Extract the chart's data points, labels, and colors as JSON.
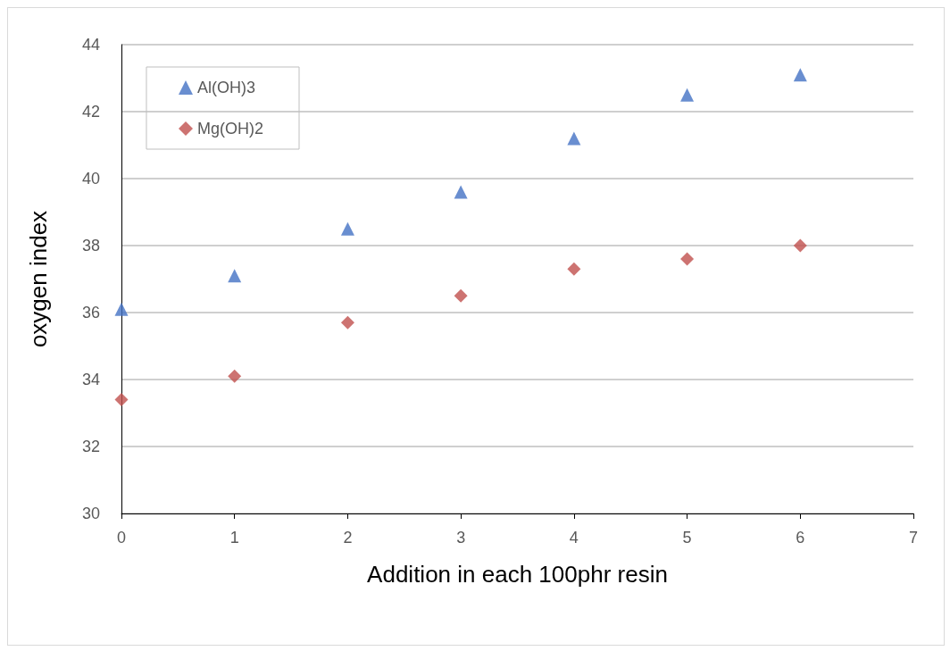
{
  "chart_data": {
    "type": "scatter",
    "xlabel": "Addition in each 100phr resin",
    "ylabel": "oxygen index",
    "x": [
      0,
      1,
      2,
      3,
      4,
      5,
      6
    ],
    "series": [
      {
        "name": "Al(OH)3",
        "color": "#4472c4",
        "marker": "triangle",
        "values": [
          36.1,
          37.1,
          38.5,
          39.6,
          41.2,
          42.5,
          43.1
        ]
      },
      {
        "name": "Mg(OH)2",
        "color": "#c0504d",
        "marker": "diamond",
        "values": [
          33.4,
          34.1,
          35.7,
          36.5,
          37.3,
          37.6,
          38.0
        ]
      }
    ],
    "xlim": [
      0,
      7
    ],
    "xticks": [
      0,
      1,
      2,
      3,
      4,
      5,
      6,
      7
    ],
    "ylim": [
      30,
      44
    ],
    "yticks": [
      30,
      32,
      34,
      36,
      38,
      40,
      42,
      44
    ],
    "grid": "y",
    "legend": "top left"
  }
}
